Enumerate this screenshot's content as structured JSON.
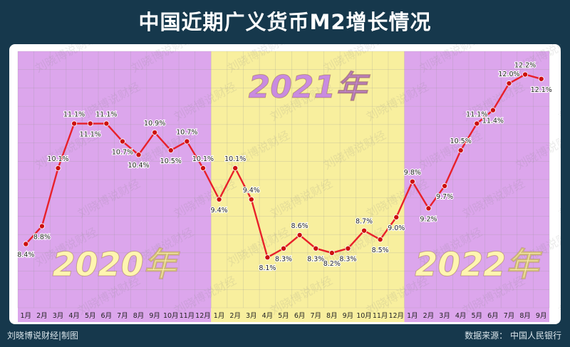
{
  "title": "中国近期广义货币M2增长情况",
  "footer": {
    "credit": "刘晓博说财经|制图",
    "source": "数据来源：  中国人民银行"
  },
  "watermark": "刘晓博说财经",
  "colors": {
    "background": "#16384c",
    "band_2020": "#dca6ec",
    "band_2021": "#f8ef9e",
    "band_2022": "#dca6ec",
    "line": "#e8202a",
    "point": "#cc1010",
    "year_label": "#fff5b0",
    "year_label_2021": "#c98be0"
  },
  "chart_data": {
    "type": "line",
    "title": "中国近期广义货币M2增长情况",
    "xlabel": "",
    "ylabel": "",
    "grid": true,
    "legend": "none",
    "ylim": [
      7.8,
      12.4
    ],
    "year_bands": [
      {
        "label": "2020年",
        "start": 0,
        "end": 11
      },
      {
        "label": "2021年",
        "start": 12,
        "end": 23
      },
      {
        "label": "2022年",
        "start": 24,
        "end": 32
      }
    ],
    "categories": [
      "1月",
      "2月",
      "3月",
      "4月",
      "5月",
      "6月",
      "7月",
      "8月",
      "9月",
      "10月",
      "11月",
      "12月",
      "1月",
      "2月",
      "3月",
      "4月",
      "5月",
      "6月",
      "7月",
      "8月",
      "9月",
      "10月",
      "11月",
      "12月",
      "1月",
      "2月",
      "3月",
      "4月",
      "5月",
      "6月",
      "7月",
      "8月",
      "9月"
    ],
    "series": [
      {
        "values": [
          8.4,
          8.8,
          10.1,
          11.1,
          11.1,
          11.1,
          10.7,
          10.4,
          10.9,
          10.5,
          10.7,
          10.1,
          9.4,
          10.1,
          9.4,
          8.1,
          8.3,
          8.6,
          8.3,
          8.2,
          8.3,
          8.7,
          8.5,
          9.0,
          9.8,
          9.2,
          9.7,
          10.5,
          11.1,
          11.4,
          12.0,
          12.2,
          12.1
        ]
      }
    ],
    "data_labels": [
      "8.4%",
      "8.8%",
      "10.1%",
      "11.1%",
      "11.1%",
      "11.1%",
      "10.7%",
      "10.4%",
      "10.9%",
      "10.5%",
      "10.7%",
      "10.1%",
      "9.4%",
      "10.1%",
      "9.4%",
      "8.1%",
      "8.3%",
      "8.6%",
      "8.3%",
      "8.2%",
      "8.3%",
      "8.7%",
      "8.5%",
      "9.0%",
      "9.8%",
      "9.2%",
      "9.7%",
      "10.5%",
      "11.1%",
      "11.4%",
      "12.0%",
      "12.2%",
      "12.1%"
    ]
  }
}
